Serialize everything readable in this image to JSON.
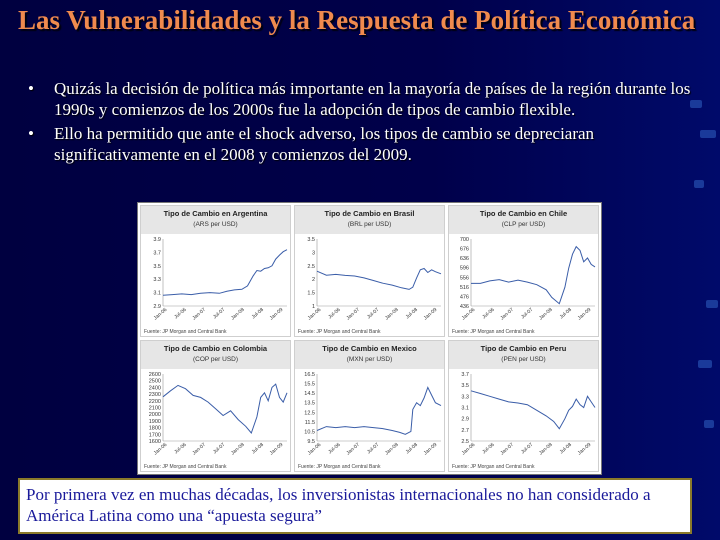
{
  "slide": {
    "title": "Las Vulnerabilidades y la Respuesta de Política Económica",
    "bullets": [
      "Quizás la decisión de política más importante en la mayoría de países de la región durante los 1990s y comienzos de los 2000s fue la adopción de tipos de cambio flexible.",
      "Ello ha permitido que ante el shock adverso, los tipos de cambio se depreciaran significativamente en el 2008 y comienzos del 2009."
    ],
    "callout": "Por primera vez en muchas décadas, los inversionistas internacionales no han considerado a América Latina como una “apuesta segura”",
    "colors": {
      "title": "#f08a4e",
      "line": "#3a5da8",
      "callout_text": "#1a1a9a"
    }
  },
  "chart_data": [
    {
      "type": "line",
      "title": "Tipo de Cambio en Argentina",
      "subtitle": "(ARS per USD)",
      "source": "Fuente: JP Morgan and Central Bank",
      "yticks": [
        "3.9",
        "3.7",
        "3.5",
        "3.3",
        "3.1",
        "2.9"
      ],
      "ylim": [
        2.9,
        3.9
      ],
      "xticks": [
        "Jan-06",
        "Jul-06",
        "Jan-07",
        "Jul-07",
        "Jan-08",
        "Jul-08",
        "Jan-09"
      ],
      "xlim": [
        0,
        6.6
      ],
      "series": [
        {
          "x": [
            0,
            0.5,
            1,
            1.5,
            2,
            2.5,
            3,
            3.4,
            3.8,
            4.2,
            4.5,
            4.8,
            5,
            5.2,
            5.4,
            5.6,
            5.8,
            6,
            6.2,
            6.4,
            6.6
          ],
          "y": [
            3.06,
            3.07,
            3.08,
            3.07,
            3.09,
            3.1,
            3.09,
            3.12,
            3.14,
            3.15,
            3.2,
            3.35,
            3.43,
            3.42,
            3.46,
            3.47,
            3.5,
            3.6,
            3.66,
            3.71,
            3.74
          ]
        }
      ]
    },
    {
      "type": "line",
      "title": "Tipo de Cambio en Brasil",
      "subtitle": "(BRL per USD)",
      "source": "Fuente: JP Morgan and Central Bank",
      "yticks": [
        "3.5",
        "3",
        "2.5",
        "2",
        "1.5",
        "1"
      ],
      "ylim": [
        1,
        3.5
      ],
      "xticks": [
        "Jan-06",
        "Jul-06",
        "Jan-07",
        "Jul-07",
        "Jan-08",
        "Jul-08",
        "Jan-09"
      ],
      "xlim": [
        0,
        6.6
      ],
      "series": [
        {
          "x": [
            0,
            0.5,
            1,
            1.5,
            2,
            2.5,
            3,
            3.5,
            4,
            4.5,
            4.9,
            5.1,
            5.3,
            5.5,
            5.7,
            5.9,
            6.1,
            6.3,
            6.6
          ],
          "y": [
            2.3,
            2.15,
            2.18,
            2.14,
            2.12,
            2.05,
            1.95,
            1.85,
            1.78,
            1.68,
            1.62,
            1.7,
            2.05,
            2.35,
            2.4,
            2.25,
            2.35,
            2.28,
            2.2
          ]
        }
      ]
    },
    {
      "type": "line",
      "title": "Tipo de Cambio en Chile",
      "subtitle": "(CLP per USD)",
      "source": "Fuente: JP Morgan and Central Bank",
      "yticks": [
        "700",
        "676",
        "636",
        "596",
        "556",
        "516",
        "476",
        "436"
      ],
      "ylim": [
        436,
        700
      ],
      "xticks": [
        "Jan-06",
        "Jul-06",
        "Jan-07",
        "Jul-07",
        "Jan-08",
        "Jul-08",
        "Jan-09"
      ],
      "xlim": [
        0,
        6.6
      ],
      "series": [
        {
          "x": [
            0,
            0.5,
            1,
            1.5,
            2,
            2.5,
            3,
            3.5,
            4,
            4.3,
            4.7,
            5,
            5.2,
            5.4,
            5.6,
            5.8,
            6,
            6.2,
            6.4,
            6.6
          ],
          "y": [
            525,
            525,
            535,
            540,
            530,
            538,
            530,
            520,
            500,
            470,
            445,
            510,
            585,
            640,
            670,
            655,
            610,
            625,
            600,
            590
          ]
        }
      ]
    },
    {
      "type": "line",
      "title": "Tipo de Cambio en Colombia",
      "subtitle": "(COP per USD)",
      "source": "Fuente: JP Morgan and Central Bank",
      "yticks": [
        "2600",
        "2500",
        "2400",
        "2300",
        "2200",
        "2100",
        "2000",
        "1900",
        "1800",
        "1700",
        "1600"
      ],
      "ylim": [
        1600,
        2600
      ],
      "xticks": [
        "Jan-06",
        "Jul-06",
        "Jan-07",
        "Jul-07",
        "Jan-08",
        "Jul-08",
        "Jan-09"
      ],
      "xlim": [
        0,
        6.6
      ],
      "series": [
        {
          "x": [
            0,
            0.4,
            0.8,
            1.2,
            1.6,
            2,
            2.4,
            2.8,
            3.2,
            3.6,
            4,
            4.4,
            4.7,
            5,
            5.2,
            5.4,
            5.6,
            5.8,
            6,
            6.2,
            6.4,
            6.6
          ],
          "y": [
            2260,
            2350,
            2430,
            2380,
            2280,
            2250,
            2180,
            2080,
            1980,
            2050,
            1920,
            1820,
            1720,
            1960,
            2250,
            2320,
            2200,
            2400,
            2450,
            2250,
            2180,
            2320
          ]
        }
      ]
    },
    {
      "type": "line",
      "title": "Tipo de Cambio en Mexico",
      "subtitle": "(MXN per USD)",
      "source": "Fuente: JP Morgan and Central Bank",
      "yticks": [
        "16.5",
        "15.5",
        "14.5",
        "13.5",
        "12.5",
        "11.5",
        "10.5",
        "9.5"
      ],
      "ylim": [
        9.5,
        16.5
      ],
      "xticks": [
        "Jan-06",
        "Jul-06",
        "Jan-07",
        "Jul-07",
        "Jan-08",
        "Jul-08",
        "Jan-09"
      ],
      "xlim": [
        0,
        6.6
      ],
      "series": [
        {
          "x": [
            0,
            0.5,
            1,
            1.5,
            2,
            2.5,
            3,
            3.5,
            4,
            4.4,
            4.7,
            5,
            5.1,
            5.3,
            5.5,
            5.7,
            5.9,
            6.1,
            6.3,
            6.6
          ],
          "y": [
            10.6,
            11.0,
            10.9,
            11.0,
            10.9,
            11.0,
            10.9,
            10.8,
            10.6,
            10.4,
            10.2,
            10.5,
            12.8,
            13.5,
            13.2,
            14.0,
            15.1,
            14.3,
            13.5,
            13.2
          ]
        }
      ]
    },
    {
      "type": "line",
      "title": "Tipo de Cambio en Peru",
      "subtitle": "(PEN per USD)",
      "source": "Fuente: JP Morgan and Central Bank",
      "yticks": [
        "3.7",
        "3.5",
        "3.3",
        "3.1",
        "2.9",
        "2.7",
        "2.5"
      ],
      "ylim": [
        2.5,
        3.7
      ],
      "xticks": [
        "Jan-06",
        "Jul-06",
        "Jan-07",
        "Jul-07",
        "Jan-08",
        "Jul-08",
        "Jan-09"
      ],
      "xlim": [
        0,
        6.6
      ],
      "series": [
        {
          "x": [
            0,
            0.5,
            1,
            1.5,
            2,
            2.5,
            3,
            3.5,
            4,
            4.4,
            4.7,
            5,
            5.2,
            5.4,
            5.6,
            5.8,
            6,
            6.2,
            6.4,
            6.6
          ],
          "y": [
            3.4,
            3.35,
            3.3,
            3.25,
            3.2,
            3.18,
            3.15,
            3.05,
            2.95,
            2.85,
            2.72,
            2.9,
            3.05,
            3.12,
            3.25,
            3.15,
            3.1,
            3.3,
            3.2,
            3.1
          ]
        }
      ]
    }
  ]
}
